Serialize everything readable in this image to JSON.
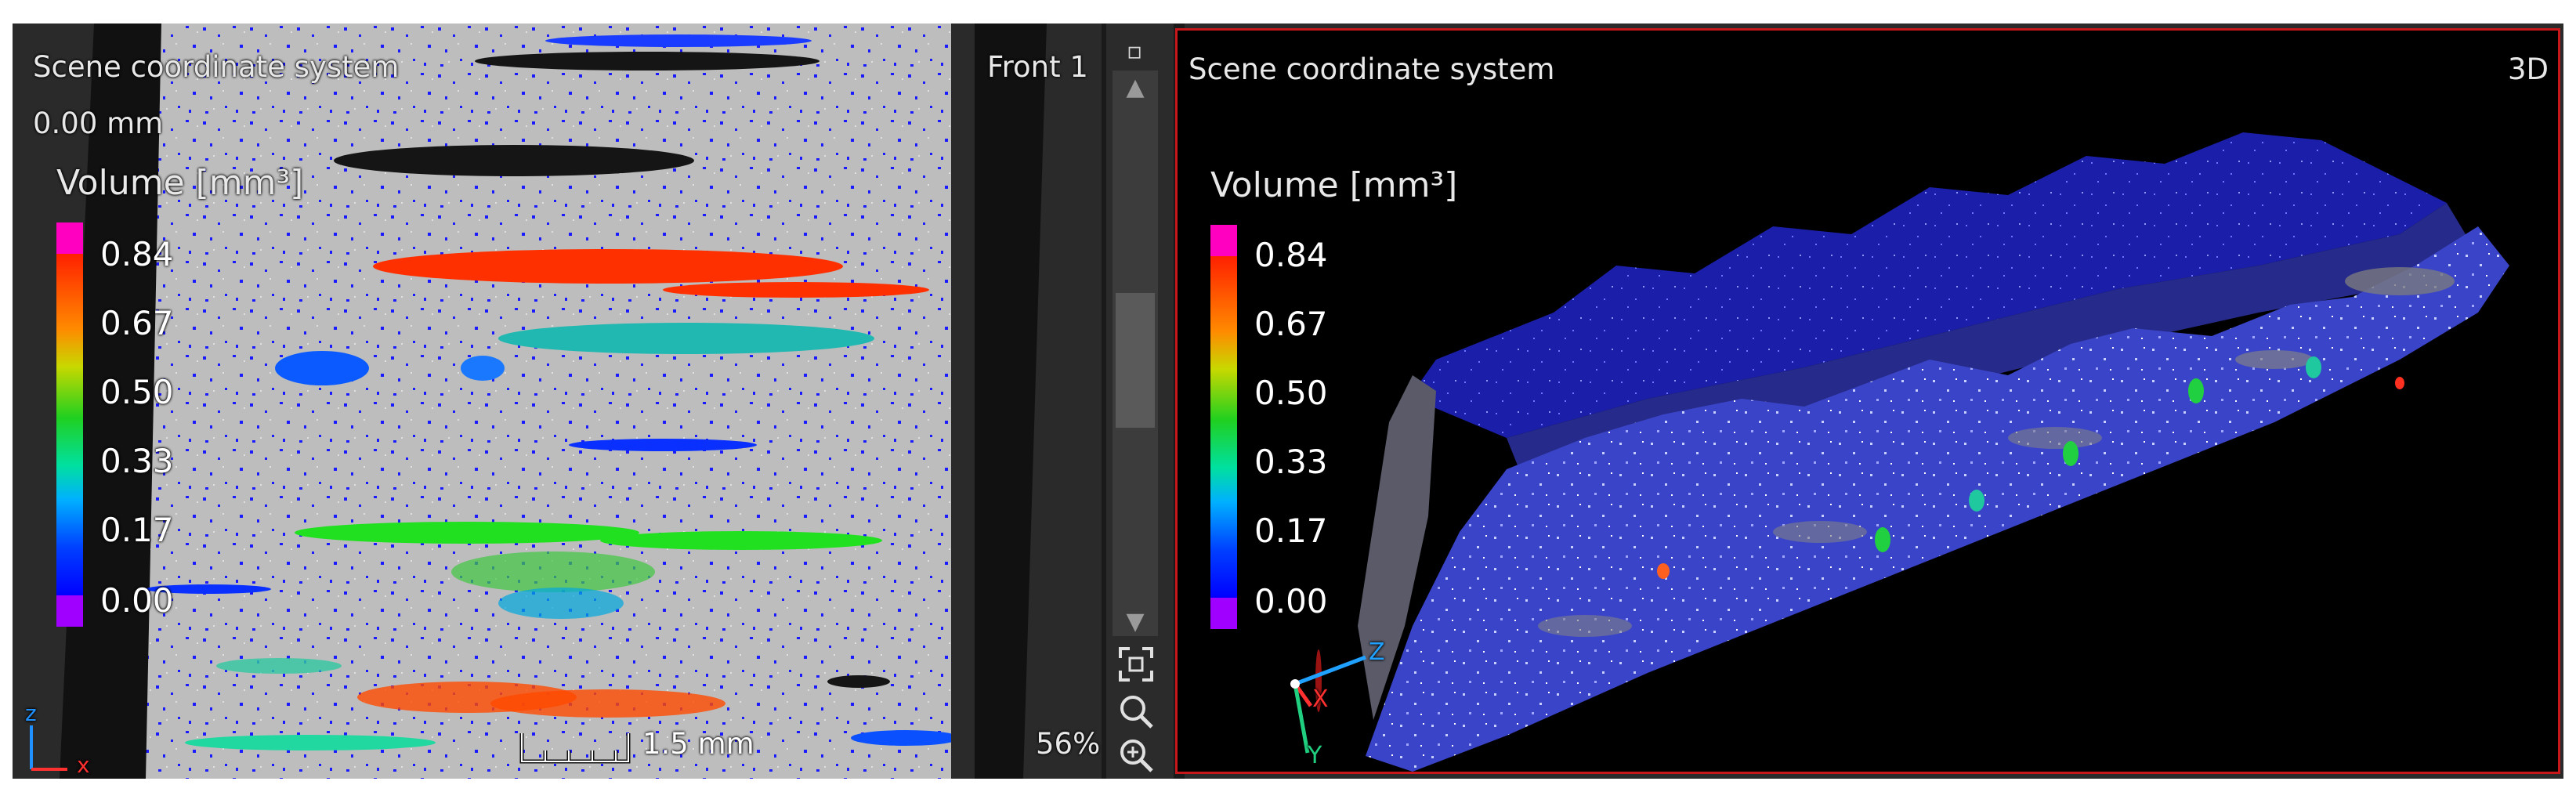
{
  "left_view": {
    "coord_label": "Scene coordinate system",
    "depth_value": "0.00 mm",
    "view_name": "Front 1",
    "zoom": "56%",
    "scale_bar_label": "1.5 mm",
    "axis_labels": {
      "z": "z",
      "x": "x"
    },
    "legend": {
      "title": "Volume [mm³]",
      "ticks": [
        "0.84",
        "0.67",
        "0.50",
        "0.33",
        "0.17",
        "0.00"
      ]
    }
  },
  "right_view": {
    "coord_label": "Scene coordinate system",
    "view_name": "3D",
    "axis_labels": {
      "z": "Z",
      "x": "X",
      "y": "Y"
    },
    "legend": {
      "title": "Volume [mm³]",
      "ticks": [
        "0.84",
        "0.67",
        "0.50",
        "0.33",
        "0.17",
        "0.00"
      ]
    }
  },
  "toolbar": {
    "icons": [
      "maximize-icon",
      "scroll-up-icon",
      "scroll-down-icon",
      "fit-view-icon",
      "magnifier-icon",
      "zoom-in-icon"
    ]
  },
  "colors": {
    "selected_border": "#c8171b",
    "colormap": [
      "#ff00c0",
      "#ff2000",
      "#ff8a00",
      "#20d020",
      "#00b0ff",
      "#0000ff",
      "#a000ff"
    ]
  }
}
